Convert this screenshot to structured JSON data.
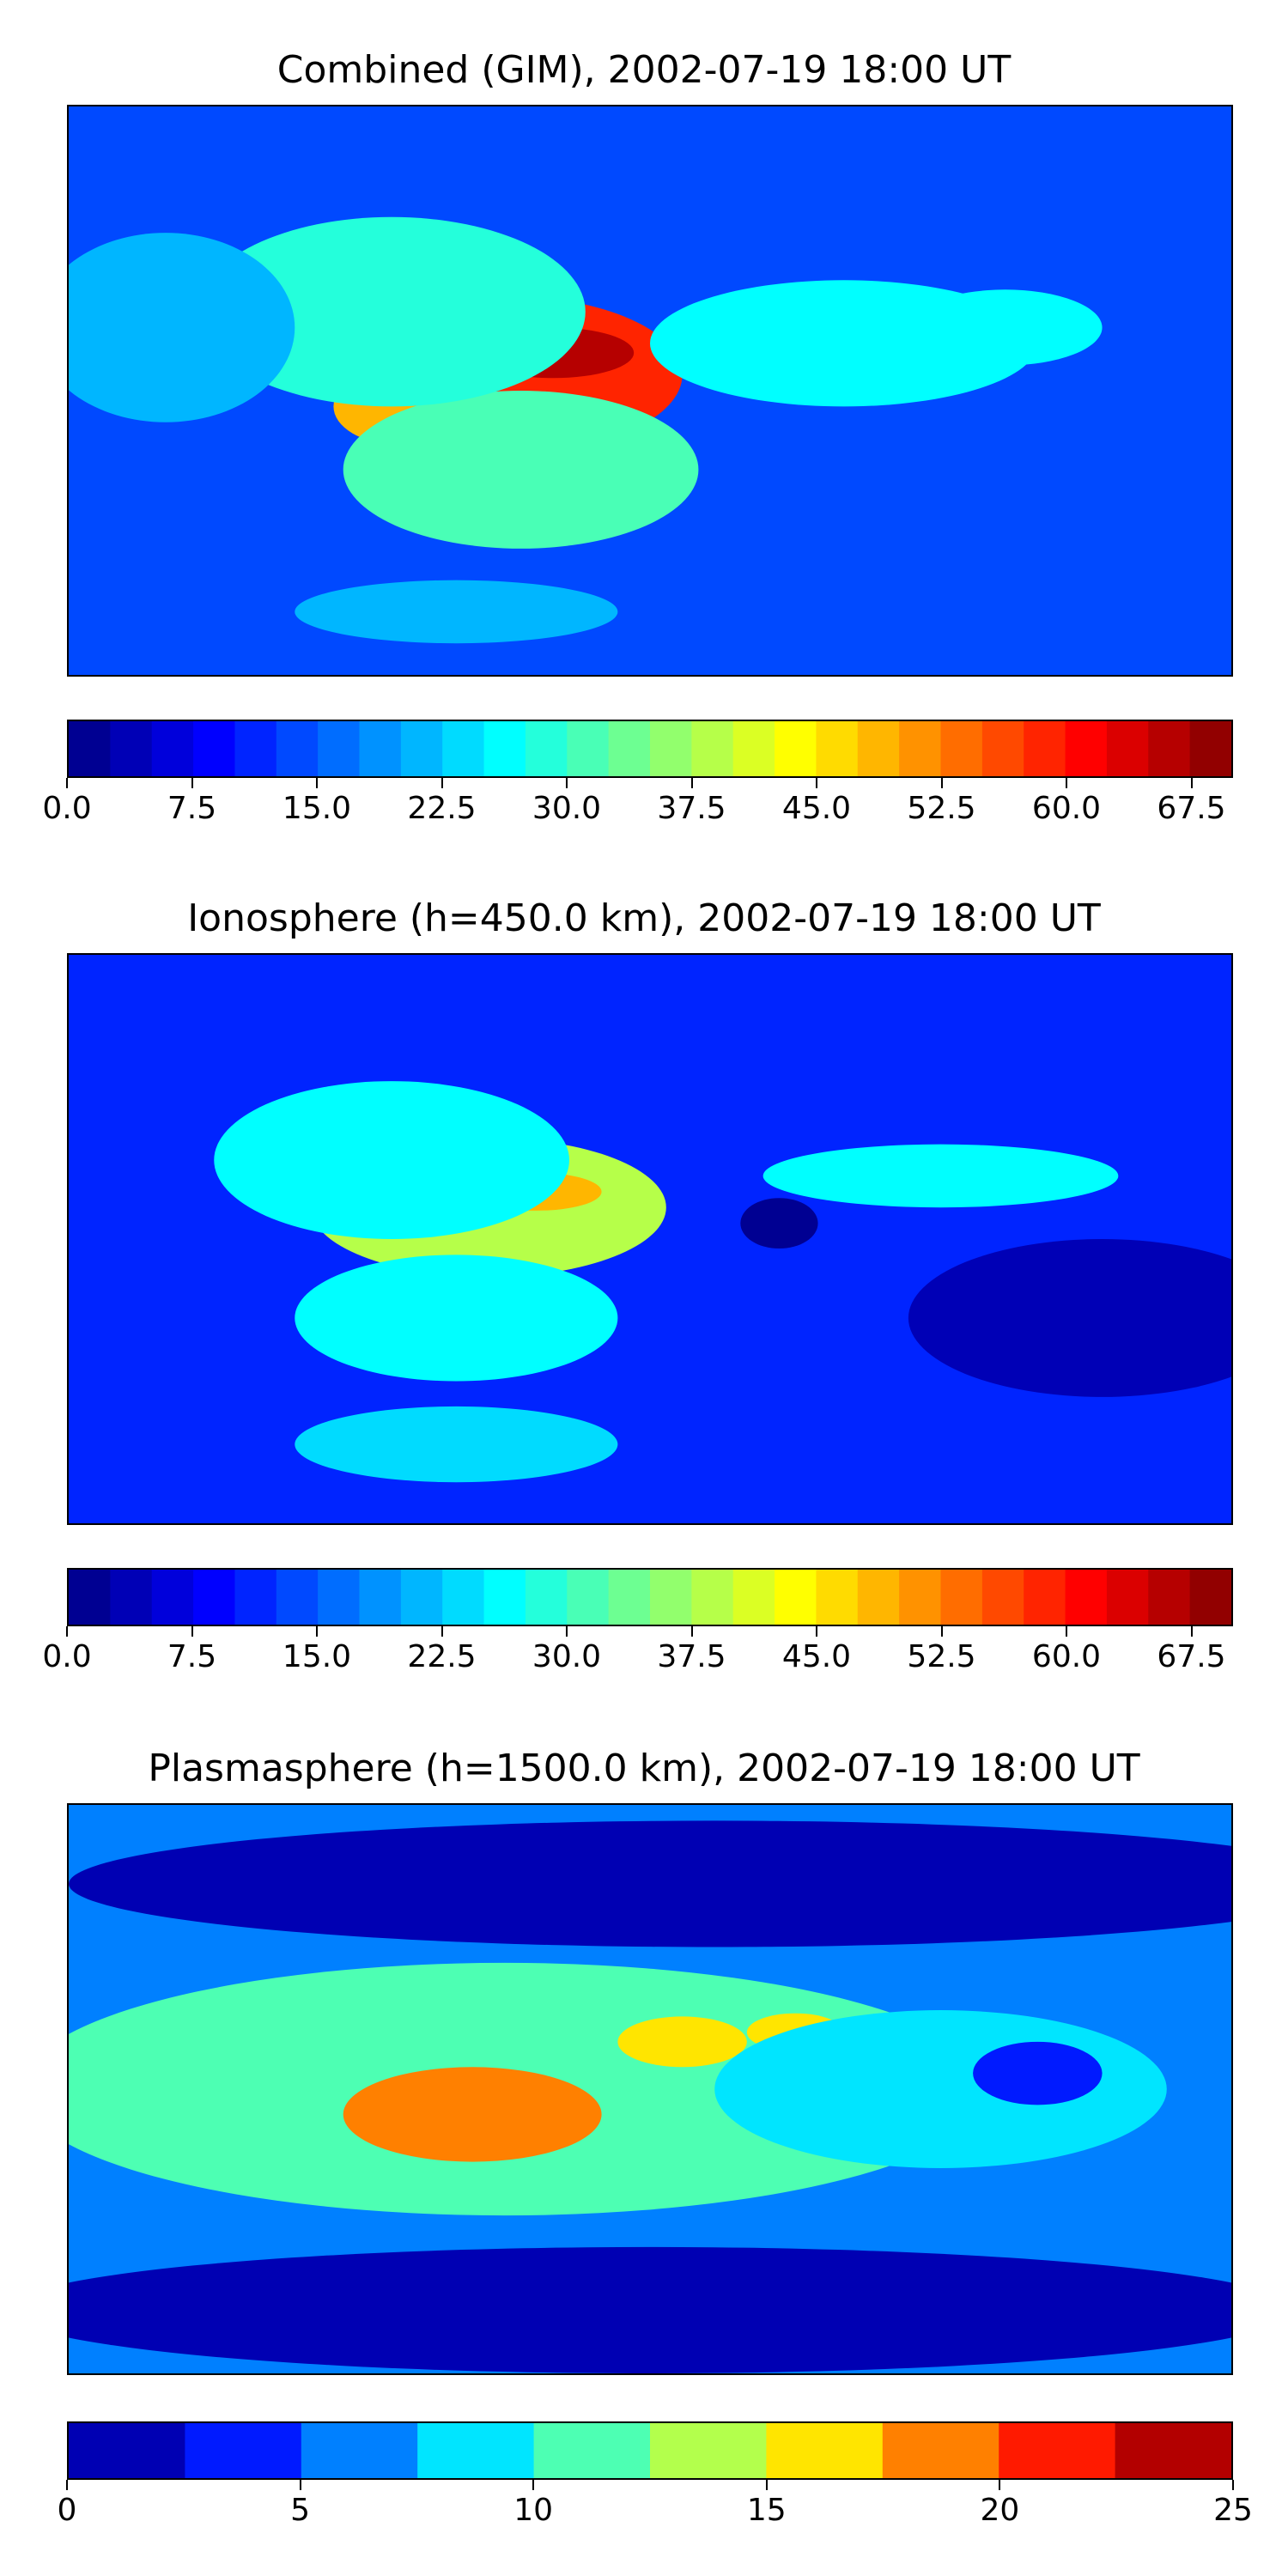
{
  "chart_data": [
    {
      "type": "heatmap",
      "title": "Combined (GIM), 2002-07-19 18:00 UT",
      "xlim": [
        -180,
        180
      ],
      "ylim": [
        -90,
        90
      ],
      "colorbar": {
        "orientation": "horizontal",
        "range": [
          0,
          70
        ],
        "step": 2.5,
        "ticks": [
          "0.0",
          "7.5",
          "15.0",
          "22.5",
          "30.0",
          "37.5",
          "45.0",
          "52.5",
          "60.0",
          "67.5"
        ],
        "tick_values": [
          0,
          7.5,
          15,
          22.5,
          30,
          37.5,
          45,
          52.5,
          60,
          67.5
        ]
      },
      "colormap": "jet",
      "background_value": 14,
      "features": [
        {
          "lon": -45,
          "lat": 5,
          "rlon": 55,
          "rlat": 25,
          "value": 58
        },
        {
          "lon": -30,
          "lat": 12,
          "rlon": 25,
          "rlat": 8,
          "value": 66
        },
        {
          "lon": -78,
          "lat": -5,
          "rlon": 20,
          "rlat": 12,
          "value": 48
        },
        {
          "lon": -40,
          "lat": -25,
          "rlon": 55,
          "rlat": 25,
          "value": 32
        },
        {
          "lon": -80,
          "lat": 25,
          "rlon": 60,
          "rlat": 30,
          "value": 28
        },
        {
          "lon": 60,
          "lat": 15,
          "rlon": 60,
          "rlat": 20,
          "value": 26
        },
        {
          "lon": 110,
          "lat": 20,
          "rlon": 30,
          "rlat": 12,
          "value": 26
        },
        {
          "lon": -150,
          "lat": 20,
          "rlon": 40,
          "rlat": 30,
          "value": 20
        },
        {
          "lon": -60,
          "lat": -70,
          "rlon": 50,
          "rlat": 10,
          "value": 22
        }
      ]
    },
    {
      "type": "heatmap",
      "title": "Ionosphere  (h=450.0 km), 2002-07-19 18:00 UT",
      "xlim": [
        -180,
        180
      ],
      "ylim": [
        -90,
        90
      ],
      "colorbar": {
        "orientation": "horizontal",
        "range": [
          0,
          70
        ],
        "step": 2.5,
        "ticks": [
          "0.0",
          "7.5",
          "15.0",
          "22.5",
          "30.0",
          "37.5",
          "45.0",
          "52.5",
          "60.0",
          "67.5"
        ],
        "tick_values": [
          0,
          7.5,
          15,
          22.5,
          30,
          37.5,
          45,
          52.5,
          60,
          67.5
        ]
      },
      "colormap": "jet",
      "background_value": 10,
      "features": [
        {
          "lon": -50,
          "lat": 10,
          "rlon": 55,
          "rlat": 22,
          "value": 38
        },
        {
          "lon": -35,
          "lat": 15,
          "rlon": 20,
          "rlat": 6,
          "value": 48
        },
        {
          "lon": -80,
          "lat": 25,
          "rlon": 55,
          "rlat": 25,
          "value": 26
        },
        {
          "lon": -60,
          "lat": -25,
          "rlon": 50,
          "rlat": 20,
          "value": 26
        },
        {
          "lon": -60,
          "lat": -65,
          "rlon": 50,
          "rlat": 12,
          "value": 24
        },
        {
          "lon": 90,
          "lat": 20,
          "rlon": 55,
          "rlat": 10,
          "value": 26
        },
        {
          "lon": 40,
          "lat": 5,
          "rlon": 12,
          "rlat": 8,
          "value": 2
        },
        {
          "lon": 140,
          "lat": -25,
          "rlon": 60,
          "rlat": 25,
          "value": 4
        }
      ]
    },
    {
      "type": "heatmap",
      "title": "Plasmasphere (h=1500.0 km), 2002-07-19 18:00 UT",
      "xlim": [
        -180,
        180
      ],
      "ylim": [
        -90,
        90
      ],
      "colorbar": {
        "orientation": "horizontal",
        "range": [
          0,
          25
        ],
        "step": 2.5,
        "ticks": [
          "0",
          "5",
          "10",
          "15",
          "20",
          "25"
        ],
        "tick_values": [
          0,
          5,
          10,
          15,
          20,
          25
        ]
      },
      "colormap": "jet",
      "background_value": 6,
      "features": [
        {
          "lon": -45,
          "lat": 0,
          "rlon": 150,
          "rlat": 40,
          "value": 12
        },
        {
          "lon": -55,
          "lat": -8,
          "rlon": 40,
          "rlat": 15,
          "value": 18
        },
        {
          "lon": 10,
          "lat": 15,
          "rlon": 20,
          "rlat": 8,
          "value": 16
        },
        {
          "lon": 45,
          "lat": 18,
          "rlon": 15,
          "rlat": 6,
          "value": 15
        },
        {
          "lon": 90,
          "lat": 0,
          "rlon": 70,
          "rlat": 25,
          "value": 9
        },
        {
          "lon": 20,
          "lat": 65,
          "rlon": 200,
          "rlat": 20,
          "value": 1
        },
        {
          "lon": 0,
          "lat": -70,
          "rlon": 200,
          "rlat": 20,
          "value": 1
        },
        {
          "lon": 120,
          "lat": 5,
          "rlon": 20,
          "rlat": 10,
          "value": 4
        }
      ]
    }
  ]
}
